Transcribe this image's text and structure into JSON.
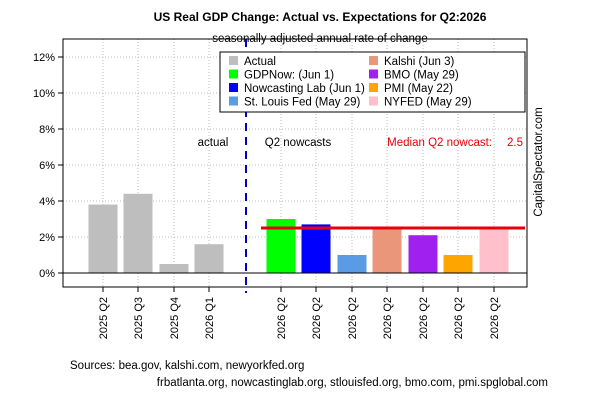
{
  "chart_data": {
    "type": "bar",
    "title": "US Real GDP Change: Actual vs. Expectations for Q2:2026",
    "subtitle": "seasonally adjusted annual rate of change",
    "ylim": [
      0,
      12
    ],
    "yticks": [
      "0%",
      "2%",
      "4%",
      "6%",
      "8%",
      "10%",
      "12%"
    ],
    "grid": true,
    "legend_position": "top-right",
    "section_labels": {
      "actual": "actual",
      "nowcast": "Q2 nowcasts"
    },
    "median": {
      "label": "Median Q2 nowcast:",
      "value": 2.5,
      "value_text": "2.5",
      "color": "#e8000b"
    },
    "watermark": "CapitalSpectator.com",
    "actual": {
      "name": "Actual",
      "color": "#bebebe",
      "categories": [
        "2025 Q2",
        "2025 Q3",
        "2025 Q4",
        "2026 Q1"
      ],
      "values": [
        3.8,
        4.4,
        0.5,
        1.6
      ]
    },
    "nowcasts": [
      {
        "name": "GDPNow: (Jun 1)",
        "category": "2026 Q2",
        "value": 3.0,
        "color": "#00ff00"
      },
      {
        "name": "Nowcasting Lab (Jun 1)",
        "category": "2026 Q2",
        "value": 2.7,
        "color": "#0000ff"
      },
      {
        "name": "St. Louis Fed (May 29)",
        "category": "2026 Q2",
        "value": 1.0,
        "color": "#5a9be6"
      },
      {
        "name": "Kalshi (Jun 3)",
        "category": "2026 Q2",
        "value": 2.5,
        "color": "#e9967a"
      },
      {
        "name": "BMO (May 29)",
        "category": "2026 Q2",
        "value": 2.1,
        "color": "#a020f0"
      },
      {
        "name": "PMI (May 22)",
        "category": "2026 Q2",
        "value": 1.0,
        "color": "#ffa500"
      },
      {
        "name": "NYFED (May 29)",
        "category": "2026 Q2",
        "value": 2.5,
        "color": "#ffc0cb"
      }
    ],
    "legend_items": [
      {
        "name": "Actual",
        "color": "#bebebe"
      },
      {
        "name": "Kalshi (Jun 3)",
        "color": "#e9967a"
      },
      {
        "name": "GDPNow: (Jun 1)",
        "color": "#00ff00"
      },
      {
        "name": "BMO (May 29)",
        "color": "#a020f0"
      },
      {
        "name": "Nowcasting Lab (Jun 1)",
        "color": "#0000ff"
      },
      {
        "name": "PMI (May 22)",
        "color": "#ffa500"
      },
      {
        "name": "St. Louis Fed (May 29)",
        "color": "#5a9be6"
      },
      {
        "name": "NYFED (May 29)",
        "color": "#ffc0cb"
      }
    ],
    "sources": [
      "Sources: bea.gov, kalshi.com, newyorkfed.org",
      "frbatlanta.org, nowcastinglab.org, stlouisfed.org, bmo.com, pmi.spglobal.com"
    ]
  }
}
